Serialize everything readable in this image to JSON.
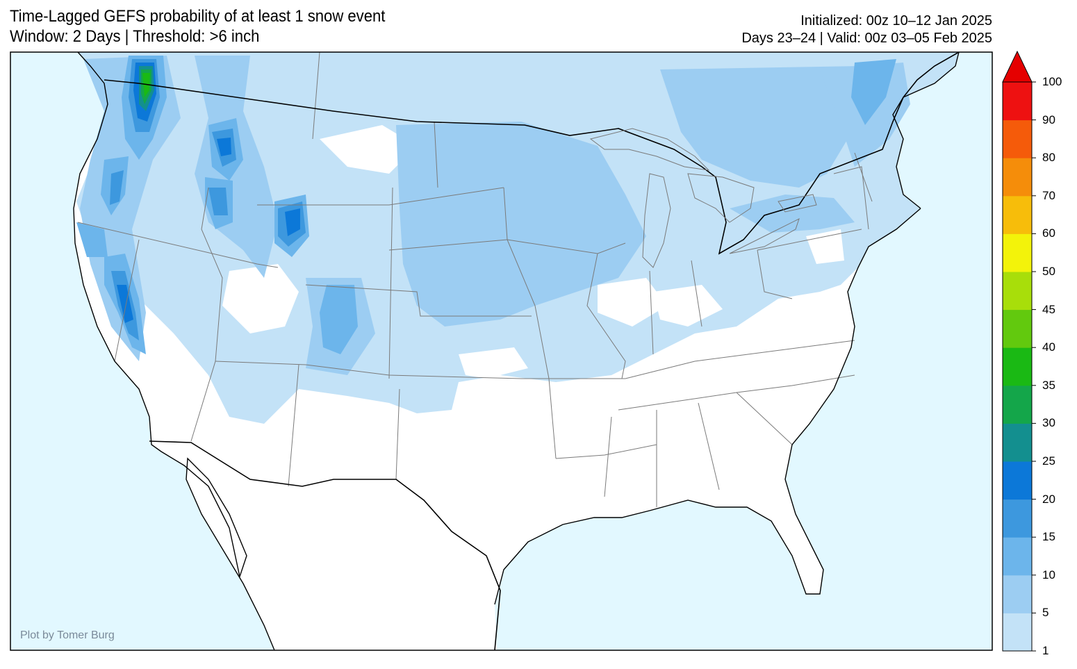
{
  "header": {
    "title": "Time-Lagged GEFS probability of at least 1 snow event",
    "subtitle": "Window: 2 Days | Threshold: >6 inch",
    "initialized": "Initialized: 00z 10–12 Jan 2025",
    "valid": "Days 23–24 | Valid: 00z 03–05 Feb 2025"
  },
  "credit": "Plot by Tomer Burg",
  "colorbar": {
    "levels": [
      "1",
      "5",
      "10",
      "15",
      "20",
      "25",
      "30",
      "35",
      "40",
      "45",
      "50",
      "60",
      "70",
      "80",
      "90",
      "100"
    ],
    "colors": [
      "#c3e2f7",
      "#9ccdf2",
      "#6cb5eb",
      "#3d98de",
      "#0c78d8",
      "#138f8f",
      "#14a64a",
      "#1ab914",
      "#62c90e",
      "#a8de0a",
      "#f3f30a",
      "#f7bd0a",
      "#f58d0a",
      "#f55b0a",
      "#ee1111"
    ],
    "extend_color": "#e50000"
  },
  "map": {
    "ocean_color": "#e2f8ff",
    "land_color": "#ffffff",
    "features": [
      "probability-shading",
      "coastlines",
      "state-borders",
      "country-borders"
    ]
  }
}
